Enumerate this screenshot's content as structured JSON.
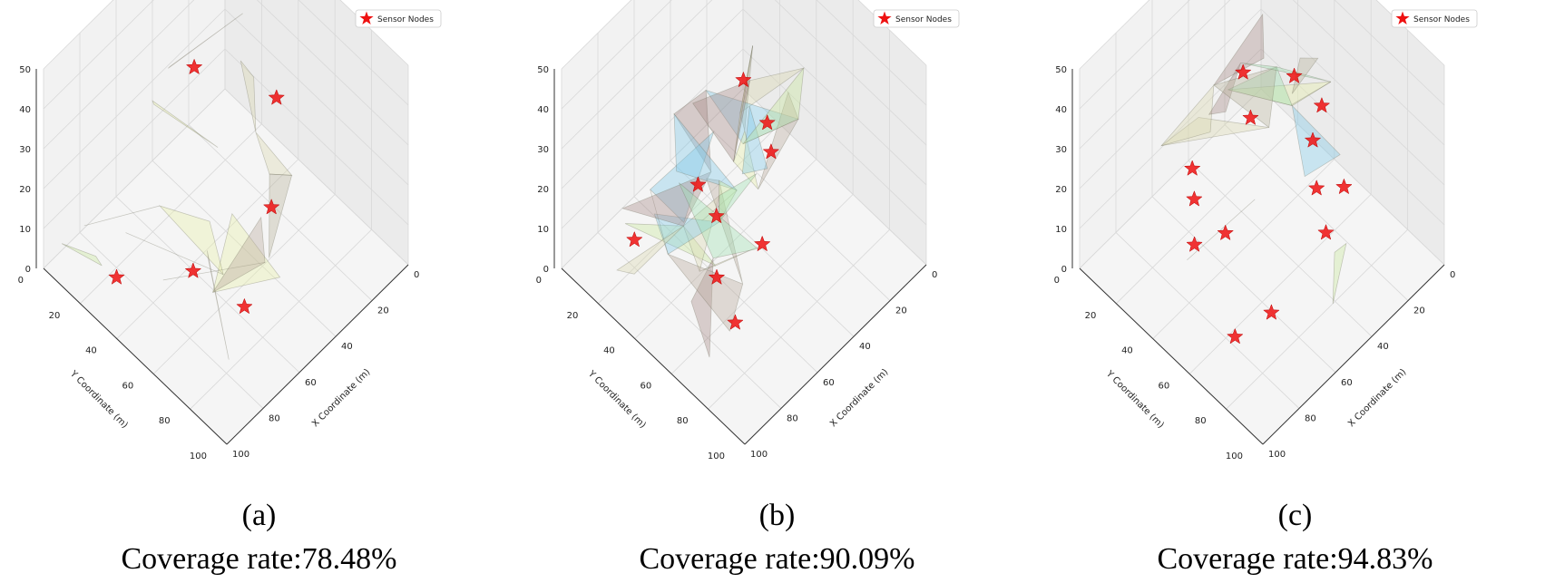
{
  "chart_data": [
    {
      "type": "3d-surface",
      "subfigure_label": "(a)",
      "caption": "Coverage rate:78.48%",
      "coverage_rate_percent": 78.48,
      "xlabel": "X Coordinate (m)",
      "ylabel": "Y Coordinate (m)",
      "xlim": [
        0,
        100
      ],
      "ylim": [
        0,
        100
      ],
      "zlim": [
        0,
        50
      ],
      "x_ticks": [
        "0",
        "20",
        "40",
        "60",
        "80",
        "100"
      ],
      "y_ticks": [
        "0",
        "20",
        "40",
        "60",
        "80",
        "100"
      ],
      "z_ticks": [
        "0",
        "10",
        "20",
        "30",
        "40",
        "50"
      ],
      "legend": {
        "label": "Sensor Nodes",
        "placement": "top-right"
      },
      "sensor_nodes": [
        {
          "x": 5,
          "y": 22,
          "z": 35
        },
        {
          "x": 38,
          "y": 10,
          "z": 38
        },
        {
          "x": 60,
          "y": 35,
          "z": 25
        },
        {
          "x": 45,
          "y": 63,
          "z": 5
        },
        {
          "x": 25,
          "y": 85,
          "z": 4
        },
        {
          "x": 72,
          "y": 62,
          "z": 10
        }
      ]
    },
    {
      "type": "3d-surface",
      "subfigure_label": "(b)",
      "caption": "Coverage rate:90.09%",
      "coverage_rate_percent": 90.09,
      "xlabel": "X Coordinate (m)",
      "ylabel": "Y Coordinate (m)",
      "xlim": [
        0,
        100
      ],
      "ylim": [
        0,
        100
      ],
      "zlim": [
        0,
        50
      ],
      "x_ticks": [
        "0",
        "20",
        "40",
        "60",
        "80",
        "100"
      ],
      "y_ticks": [
        "0",
        "20",
        "40",
        "60",
        "80",
        "100"
      ],
      "z_ticks": [
        "0",
        "10",
        "20",
        "30",
        "40",
        "50"
      ],
      "legend": {
        "label": "Sensor Nodes",
        "placement": "top-right"
      },
      "sensor_nodes": [
        {
          "x": 20,
          "y": 20,
          "z": 40
        },
        {
          "x": 33,
          "y": 20,
          "z": 30
        },
        {
          "x": 45,
          "y": 30,
          "z": 35
        },
        {
          "x": 60,
          "y": 50,
          "z": 20
        },
        {
          "x": 20,
          "y": 45,
          "z": 10
        },
        {
          "x": 35,
          "y": 50,
          "z": 12
        },
        {
          "x": 50,
          "y": 65,
          "z": 8
        },
        {
          "x": 15,
          "y": 75,
          "z": 5
        },
        {
          "x": 70,
          "y": 75,
          "z": 12
        }
      ]
    },
    {
      "type": "3d-surface",
      "subfigure_label": "(c)",
      "caption": "Coverage rate:94.83%",
      "coverage_rate_percent": 94.83,
      "xlabel": "X Coordinate (m)",
      "ylabel": "Y Coordinate (m)",
      "xlim": [
        0,
        100
      ],
      "ylim": [
        0,
        100
      ],
      "zlim": [
        0,
        50
      ],
      "x_ticks": [
        "0",
        "20",
        "40",
        "60",
        "80",
        "100"
      ],
      "y_ticks": [
        "0",
        "20",
        "40",
        "60",
        "80",
        "100"
      ],
      "z_ticks": [
        "0",
        "10",
        "20",
        "30",
        "40",
        "50"
      ],
      "legend": {
        "label": "Sensor Nodes",
        "placement": "top-right"
      },
      "sensor_nodes": [
        {
          "x": 10,
          "y": 20,
          "z": 35
        },
        {
          "x": 28,
          "y": 10,
          "z": 40
        },
        {
          "x": 22,
          "y": 28,
          "z": 30
        },
        {
          "x": 45,
          "y": 12,
          "z": 42
        },
        {
          "x": 50,
          "y": 22,
          "z": 38
        },
        {
          "x": 60,
          "y": 30,
          "z": 30
        },
        {
          "x": 70,
          "y": 25,
          "z": 35
        },
        {
          "x": 10,
          "y": 48,
          "z": 12
        },
        {
          "x": 18,
          "y": 55,
          "z": 10
        },
        {
          "x": 35,
          "y": 55,
          "z": 8
        },
        {
          "x": 28,
          "y": 65,
          "z": 5
        },
        {
          "x": 70,
          "y": 65,
          "z": 8
        },
        {
          "x": 75,
          "y": 40,
          "z": 30
        },
        {
          "x": 65,
          "y": 80,
          "z": 5
        }
      ]
    }
  ],
  "colors": {
    "marker": "#ee1111",
    "grid": "#d8d8d8",
    "pane": "#f2f2f2",
    "facet_palette": [
      "#e8efa8",
      "#b8b49a",
      "#9fe0b0",
      "#d9d7b0",
      "#a58a86",
      "#7ec8e8",
      "#c7e89a",
      "#b9a99b"
    ]
  }
}
